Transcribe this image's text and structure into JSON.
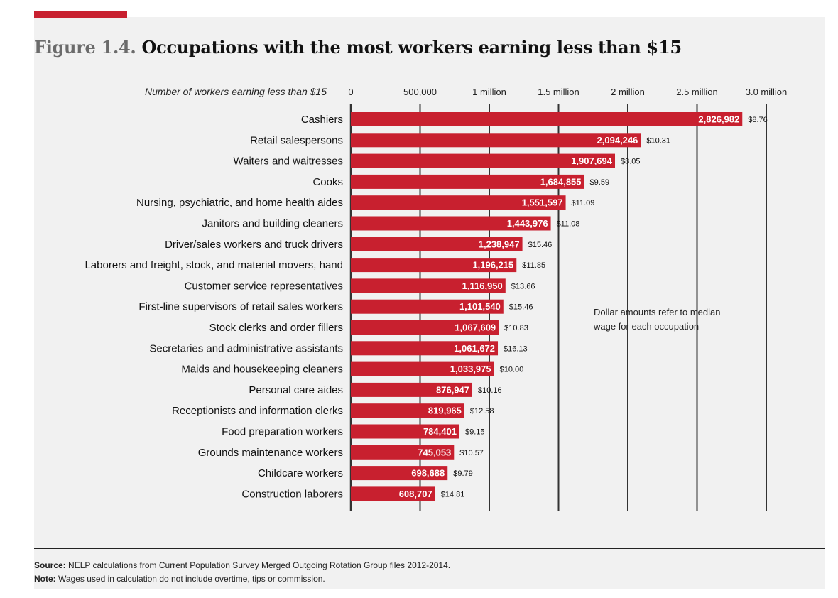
{
  "figure_label": "Figure 1.4.",
  "title": "Occupations with the most workers earning less than $15",
  "annotation_lines": [
    "Dollar amounts refer to median",
    "wage for each occupation"
  ],
  "source_label": "Source:",
  "source_text": "NELP calculations from Current Population Survey Merged Outgoing Rotation Group files 2012-2014.",
  "note_label": "Note:",
  "note_text": "Wages used in calculation do not include overtime, tips or commission.",
  "colors": {
    "bar": "#c8202f",
    "accent": "#c8202f",
    "panel": "#f1f1f1",
    "text": "#111111"
  },
  "chart_data": {
    "type": "bar",
    "orientation": "horizontal",
    "title": "Occupations with the most workers earning less than $15",
    "xlabel": "Number of workers earning less than $15",
    "xlim": [
      0,
      3000000
    ],
    "grid": true,
    "ticks": [
      {
        "value": 0,
        "label": "0"
      },
      {
        "value": 500000,
        "label": "500,000"
      },
      {
        "value": 1000000,
        "label": "1 million"
      },
      {
        "value": 1500000,
        "label": "1.5 million"
      },
      {
        "value": 2000000,
        "label": "2 million"
      },
      {
        "value": 2500000,
        "label": "2.5 million"
      },
      {
        "value": 3000000,
        "label": "3.0 million"
      }
    ],
    "categories": [
      "Cashiers",
      "Retail salespersons",
      "Waiters and waitresses",
      "Cooks",
      "Nursing, psychiatric, and home health aides",
      "Janitors and building cleaners",
      "Driver/sales workers and truck drivers",
      "Laborers and freight, stock, and material movers, hand",
      "Customer service representatives",
      "First-line supervisors of retail sales workers",
      "Stock clerks and order fillers",
      "Secretaries and administrative assistants",
      "Maids and housekeeping cleaners",
      "Personal care aides",
      "Receptionists and information clerks",
      "Food preparation workers",
      "Grounds maintenance workers",
      "Childcare workers",
      "Construction laborers"
    ],
    "values": [
      2826982,
      2094246,
      1907694,
      1684855,
      1551597,
      1443976,
      1238947,
      1196215,
      1116950,
      1101540,
      1067609,
      1061672,
      1033975,
      876947,
      819965,
      784401,
      745053,
      698688,
      608707
    ],
    "value_labels": [
      "2,826,982",
      "2,094,246",
      "1,907,694",
      "1,684,855",
      "1,551,597",
      "1,443,976",
      "1,238,947",
      "1,196,215",
      "1,116,950",
      "1,101,540",
      "1,067,609",
      "1,061,672",
      "1,033,975",
      "876,947",
      "819,965",
      "784,401",
      "745,053",
      "698,688",
      "608,707"
    ],
    "wage_labels": [
      "$8.76",
      "$10.31",
      "$8.05",
      "$9.59",
      "$11.09",
      "$11.08",
      "$15.46",
      "$11.85",
      "$13.66",
      "$15.46",
      "$10.83",
      "$16.13",
      "$10.00",
      "$10.16",
      "$12.58",
      "$9.15",
      "$10.57",
      "$9.79",
      "$14.81"
    ]
  }
}
